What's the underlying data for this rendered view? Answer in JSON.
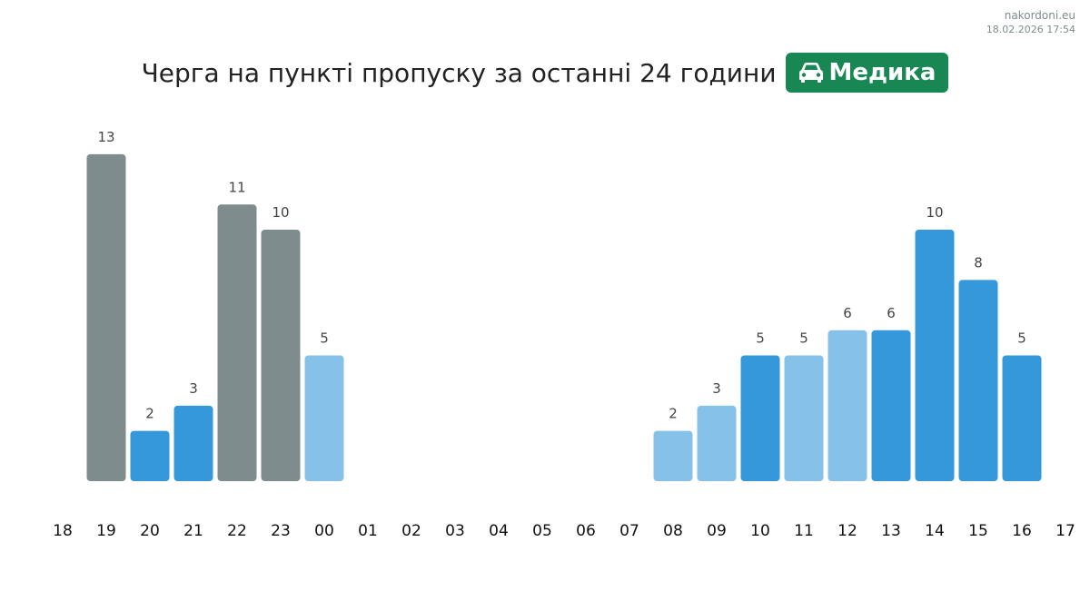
{
  "header": {
    "site": "nakordoni.eu",
    "timestamp": "18.02.2026 17:54"
  },
  "title": {
    "text": "Черга на пункті пропуску за останні 24 години",
    "badge_label": "Медика",
    "badge_icon": "car-icon",
    "badge_color": "#198754"
  },
  "colors": {
    "gray": "#7f8c8d",
    "blue": "#3498db",
    "light_blue": "#85c1e9"
  },
  "chart_data": {
    "type": "bar",
    "categories": [
      "18",
      "19",
      "20",
      "21",
      "22",
      "23",
      "00",
      "01",
      "02",
      "03",
      "04",
      "05",
      "06",
      "07",
      "08",
      "09",
      "10",
      "11",
      "12",
      "13",
      "14",
      "15",
      "16",
      "17"
    ],
    "values": [
      null,
      13,
      2,
      3,
      11,
      10,
      5,
      null,
      null,
      null,
      null,
      null,
      null,
      null,
      2,
      3,
      5,
      5,
      6,
      6,
      10,
      8,
      5,
      null
    ],
    "bar_colors": [
      "",
      "gray",
      "blue",
      "blue",
      "gray",
      "gray",
      "light_blue",
      "",
      "",
      "",
      "",
      "",
      "",
      "",
      "light_blue",
      "light_blue",
      "blue",
      "light_blue",
      "light_blue",
      "blue",
      "blue",
      "blue",
      "blue",
      ""
    ],
    "title": "Черга на пункті пропуску за останні 24 години",
    "xlabel": "",
    "ylabel": "",
    "ylim": [
      0,
      13
    ],
    "grid": false,
    "legend": "none"
  }
}
